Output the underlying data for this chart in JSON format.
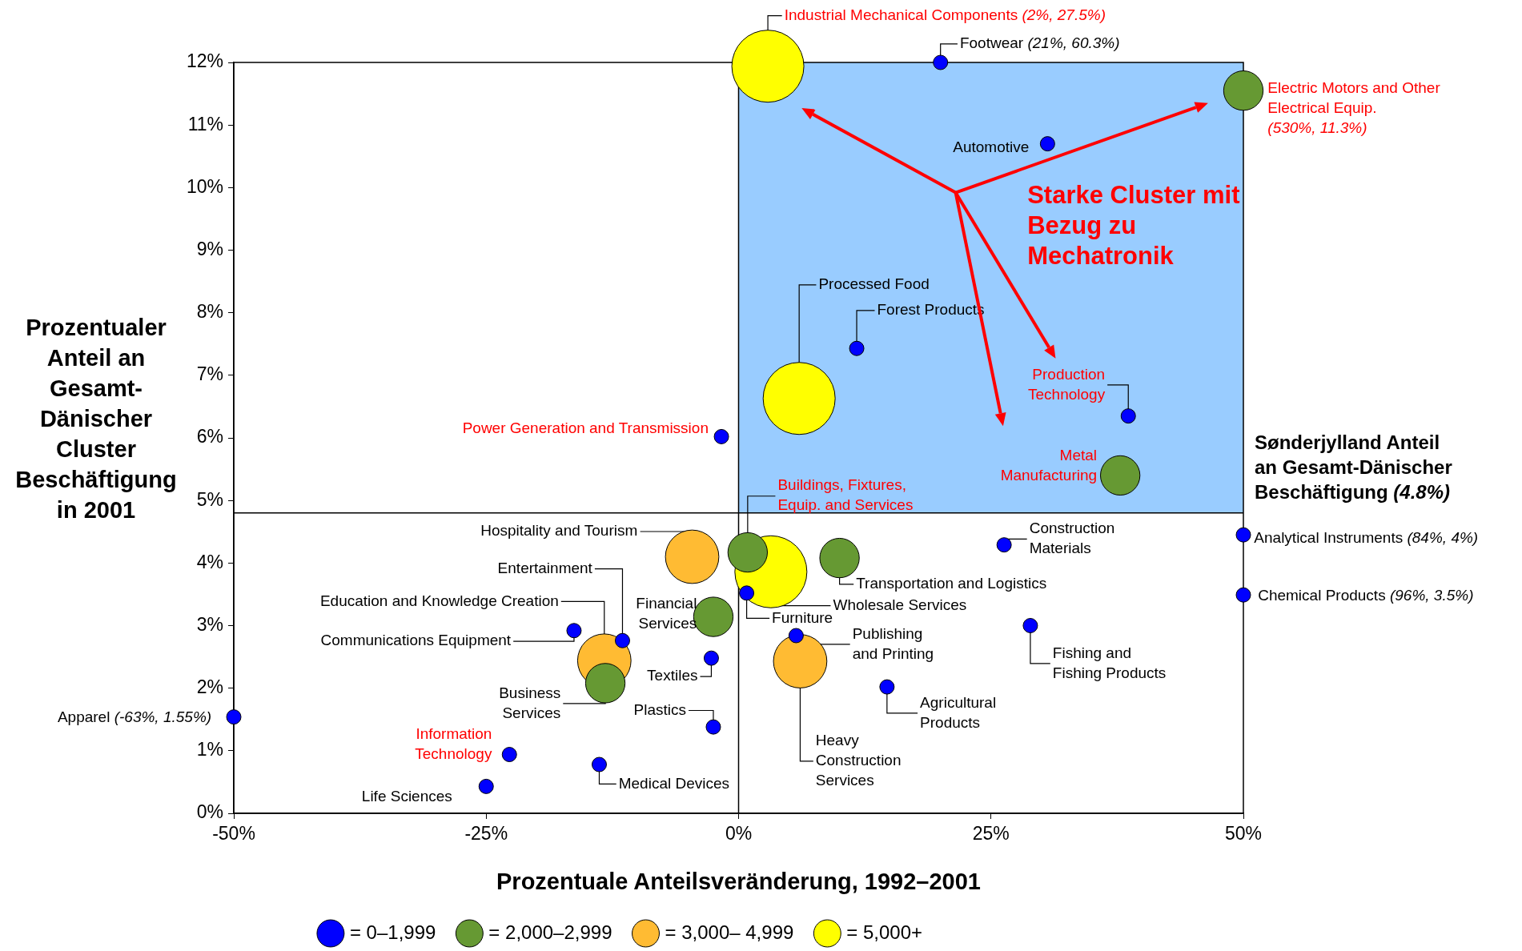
{
  "chart_data": {
    "type": "bubble",
    "xlabel": "Prozentuale Anteilsveränderung, 1992–2001",
    "ylabel": "Prozentualer Anteil an Gesamt-Dänischer Cluster Beschäftigung in 2001",
    "xlim": [
      -50,
      50
    ],
    "xticks": [
      {
        "value": -50,
        "label": "-50%"
      },
      {
        "value": -25,
        "label": "-25%"
      },
      {
        "value": 0,
        "label": "0%"
      },
      {
        "value": 25,
        "label": "25%"
      },
      {
        "value": 50,
        "label": "50%"
      }
    ],
    "ylim": [
      0,
      12
    ],
    "yticks": [
      {
        "value": 0,
        "label": "0%"
      },
      {
        "value": 1,
        "label": "1%"
      },
      {
        "value": 2,
        "label": "2%"
      },
      {
        "value": 3,
        "label": "3%"
      },
      {
        "value": 4,
        "label": "4%"
      },
      {
        "value": 5,
        "label": "5%"
      },
      {
        "value": 6,
        "label": "6%"
      },
      {
        "value": 7,
        "label": "7%"
      },
      {
        "value": 8,
        "label": "8%"
      },
      {
        "value": 9,
        "label": "9%"
      },
      {
        "value": 10,
        "label": "10%"
      },
      {
        "value": 11,
        "label": "11%"
      },
      {
        "value": 12,
        "label": "12%"
      }
    ],
    "grid": false,
    "legend": "bottom",
    "series": [
      {
        "name": "= 0–1,999",
        "color": "#0000ff",
        "x": [
          20,
          30.6,
          11.7,
          38.6,
          -1.7,
          26.3,
          50,
          50,
          0.8,
          28.9,
          5.7,
          -16.3,
          -11.5,
          -2.7,
          14.7,
          -50,
          -2.5,
          -22.7,
          -13.8,
          -25
        ],
        "values": [
          12,
          10.7,
          7.43,
          6.35,
          6.02,
          4.29,
          4.45,
          3.49,
          3.52,
          3,
          2.84,
          2.92,
          2.76,
          2.48,
          2.02,
          1.54,
          1.38,
          0.94,
          0.78,
          0.43
        ],
        "sizes": [
          0.04,
          0.04,
          0.04,
          0.04,
          0.04,
          0.04,
          0.04,
          0.04,
          0.04,
          0.04,
          0.04,
          0.04,
          0.04,
          0.04,
          0.04,
          0.04,
          0.04,
          0.04,
          0.04,
          0.04
        ]
      },
      {
        "name": "= 2,000–2,999",
        "color": "#669933",
        "x": [
          50,
          37.8,
          0.9,
          10,
          -2.5,
          -13.2
        ],
        "values": [
          11.55,
          5.4,
          4.17,
          4.08,
          3.14,
          2.08
        ],
        "sizes": [
          0.3,
          0.3,
          0.3,
          0.3,
          0.3,
          0.3
        ]
      },
      {
        "name": "= 3,000– 4,999",
        "color": "#ffbb33",
        "x": [
          -4.6,
          -13.3,
          6.1
        ],
        "values": [
          4.1,
          2.44,
          2.43
        ],
        "sizes": [
          0.55,
          0.55,
          0.55
        ]
      },
      {
        "name": "= 5,000+",
        "color": "#ffff00",
        "x": [
          2.9,
          6,
          3.2
        ],
        "values": [
          11.94,
          6.63,
          3.86
        ],
        "sizes": [
          1,
          1,
          1
        ]
      }
    ],
    "ref_lines": [
      {
        "axis": "x",
        "value": 0
      },
      {
        "axis": "y",
        "value": 4.8,
        "label": "Sønderjylland Anteil an Gesamt-Dänischer Beschäftigung (4.8%)"
      }
    ],
    "bands": [
      {
        "axis": "y",
        "from": 4.8,
        "to": 12,
        "color": "#99ccff"
      }
    ],
    "annotations": [
      {
        "text": "Footwear (21%, 60.3%)",
        "x": 20,
        "y": 12
      },
      {
        "text": "Automotive",
        "x": 30.6,
        "y": 10.7
      },
      {
        "text": "Forest Products",
        "x": 11.7,
        "y": 7.43
      },
      {
        "text": "Production Technology",
        "x": 38.6,
        "y": 6.35
      },
      {
        "text": "Power Generation and Transmission",
        "x": -1.7,
        "y": 6.02
      },
      {
        "text": "Construction Materials",
        "x": 26.3,
        "y": 4.29
      },
      {
        "text": "Analytical Instruments (84%, 4%)",
        "x": 50,
        "y": 4.45
      },
      {
        "text": "Chemical Products (96%, 3.5%)",
        "x": 50,
        "y": 3.49
      },
      {
        "text": "Furniture",
        "x": 0.8,
        "y": 3.52
      },
      {
        "text": "Fishing and Fishing Products",
        "x": 28.9,
        "y": 3
      },
      {
        "text": "Publishing and Printing",
        "x": 5.7,
        "y": 2.84
      },
      {
        "text": "Communications Equipment",
        "x": -16.3,
        "y": 2.92
      },
      {
        "text": "Entertainment",
        "x": -11.5,
        "y": 2.76
      },
      {
        "text": "Textiles",
        "x": -2.7,
        "y": 2.48
      },
      {
        "text": "Agricultural Products",
        "x": 14.7,
        "y": 2.02
      },
      {
        "text": "Apparel (-63%, 1.55%)",
        "x": -50,
        "y": 1.54
      },
      {
        "text": "Plastics",
        "x": -2.5,
        "y": 1.38
      },
      {
        "text": "Information Technology",
        "x": -22.7,
        "y": 0.94
      },
      {
        "text": "Medical Devices",
        "x": -13.8,
        "y": 0.78
      },
      {
        "text": "Life Sciences",
        "x": -25,
        "y": 0.43
      },
      {
        "text": "Electric Motors and Other Electrical Equip. (530%, 11.3%)",
        "x": 50,
        "y": 11.55
      },
      {
        "text": "Metal Manufacturing",
        "x": 37.8,
        "y": 5.4
      },
      {
        "text": "Buildings, Fixtures, Equip. and Services",
        "x": 0.9,
        "y": 4.17
      },
      {
        "text": "Transportation and Logistics",
        "x": 10,
        "y": 4.08
      },
      {
        "text": "Financial Services",
        "x": -2.5,
        "y": 3.14
      },
      {
        "text": "Business Services",
        "x": -13.2,
        "y": 2.08
      },
      {
        "text": "Hospitality and Tourism",
        "x": -4.6,
        "y": 4.1
      },
      {
        "text": "Education and Knowledge Creation",
        "x": -13.3,
        "y": 2.44
      },
      {
        "text": "Heavy Construction Services",
        "x": 6.1,
        "y": 2.43
      },
      {
        "text": "Industrial Mechanical Components (2%, 27.5%)",
        "x": 2.9,
        "y": 11.94
      },
      {
        "text": "Processed Food",
        "x": 6,
        "y": 6.63
      },
      {
        "text": "Wholesale Services",
        "x": 3.2,
        "y": 3.86
      },
      "Starke Cluster mit Bezug zu Mechatronik"
    ]
  }
}
